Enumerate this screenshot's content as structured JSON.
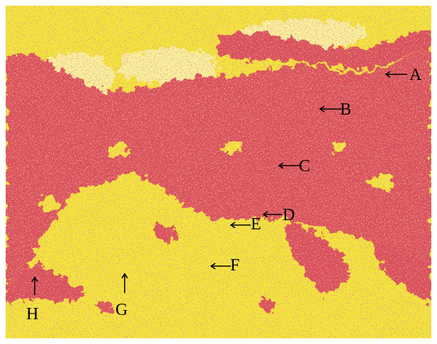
{
  "figure": {
    "colors": {
      "background": "#f2e43a",
      "stain": "#d9515a",
      "stain_dark": "#c7434e",
      "highlight": "#f7f09a",
      "speckle": "#8a2f35"
    },
    "labels": [
      {
        "id": "A",
        "text": "A",
        "arrow": "left"
      },
      {
        "id": "B",
        "text": "B",
        "arrow": "left"
      },
      {
        "id": "C",
        "text": "C",
        "arrow": "left"
      },
      {
        "id": "D",
        "text": "D",
        "arrow": "left"
      },
      {
        "id": "E",
        "text": "E",
        "arrow": "left"
      },
      {
        "id": "F",
        "text": "F",
        "arrow": "left"
      },
      {
        "id": "G",
        "text": "G",
        "arrow": "up"
      },
      {
        "id": "H",
        "text": "H",
        "arrow": "up"
      }
    ]
  }
}
